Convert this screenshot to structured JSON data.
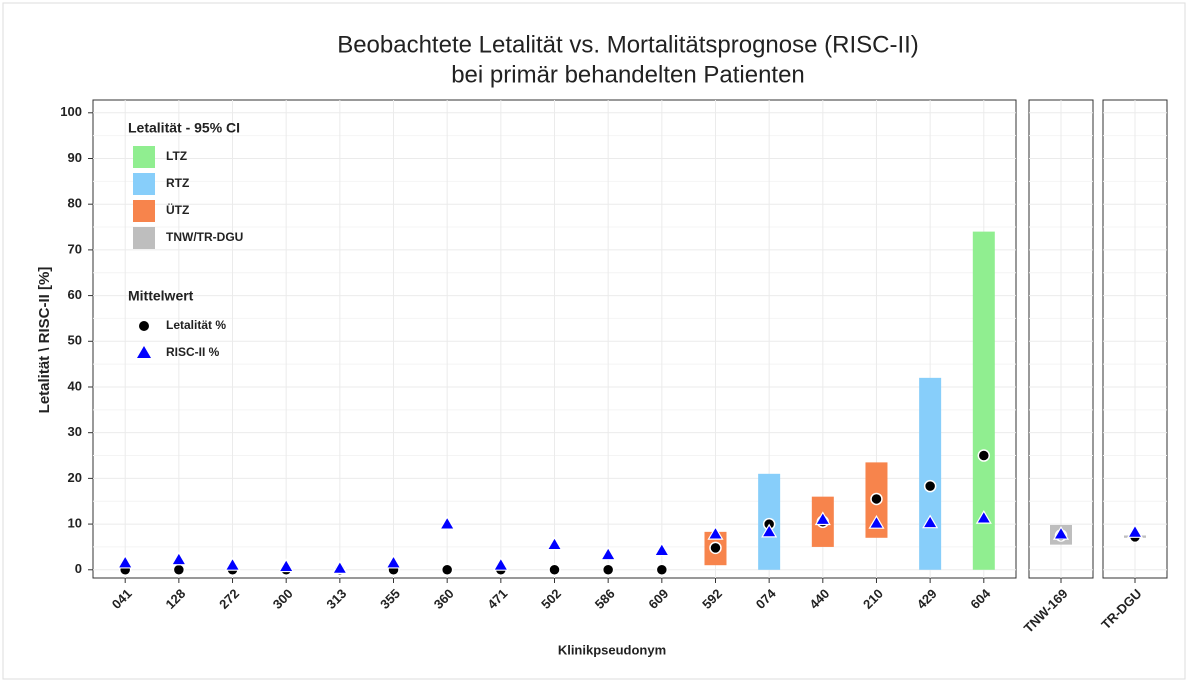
{
  "chart_data": {
    "type": "range_point",
    "title": "Beobachtete Letalität vs. Mortalitätsprognose (RISC-II)",
    "subtitle": "bei primär behandelten Patienten",
    "x_label": "Klinikpseudonym",
    "y_label": "Letalität \\ RISC-II [%]",
    "ylim": [
      -1.8,
      102.8
    ],
    "yticks": [
      0,
      10,
      20,
      30,
      40,
      50,
      60,
      70,
      80,
      90,
      100
    ],
    "grid": true,
    "legend_ci": {
      "title": "Letalität - 95% CI",
      "names": [
        "LTZ",
        "RTZ",
        "ÜTZ",
        "TNW/TR-DGU"
      ],
      "colors": [
        "#90ee90",
        "#87cefa",
        "#f7844c",
        "#bebebe"
      ]
    },
    "legend_mean": {
      "title": "Mittelwert",
      "names": [
        "Letalität %",
        "RISC-II %"
      ],
      "colors": [
        "#000000",
        "#0000ff"
      ]
    },
    "panels": [
      {
        "categories": [
          "041",
          "128",
          "272",
          "300",
          "313",
          "355",
          "360",
          "471",
          "502",
          "586",
          "609",
          "592",
          "074",
          "440",
          "210",
          "429",
          "604"
        ],
        "letality": [
          0,
          0,
          0,
          0,
          0,
          0,
          0,
          0,
          0,
          0,
          0,
          4.8,
          10,
          10.5,
          15.5,
          18.3,
          25
        ],
        "risc": [
          1.5,
          2.2,
          1.0,
          0.7,
          0.3,
          1.5,
          10,
          1.0,
          5.5,
          3.3,
          4.2,
          7.8,
          8.3,
          11,
          10.2,
          10.3,
          11.3
        ],
        "ci_low": [
          null,
          null,
          null,
          null,
          null,
          null,
          null,
          null,
          null,
          null,
          null,
          1,
          0,
          5,
          7,
          0,
          0
        ],
        "ci_high": [
          null,
          null,
          null,
          null,
          null,
          null,
          null,
          null,
          null,
          null,
          null,
          8.3,
          21,
          16,
          23.5,
          42,
          74
        ],
        "group": [
          null,
          null,
          null,
          null,
          null,
          null,
          null,
          null,
          null,
          null,
          null,
          2,
          1,
          2,
          2,
          1,
          0
        ]
      },
      {
        "categories": [
          "TNW-169"
        ],
        "letality": [
          7.5
        ],
        "risc": [
          7.8
        ],
        "ci_low": [
          5.5
        ],
        "ci_high": [
          9.8
        ],
        "group": [
          3
        ]
      },
      {
        "categories": [
          "TR-DGU"
        ],
        "letality": [
          7.2
        ],
        "risc": [
          8.2
        ],
        "ci_low": [
          7
        ],
        "ci_high": [
          7.5
        ],
        "group": [
          3
        ]
      }
    ]
  }
}
